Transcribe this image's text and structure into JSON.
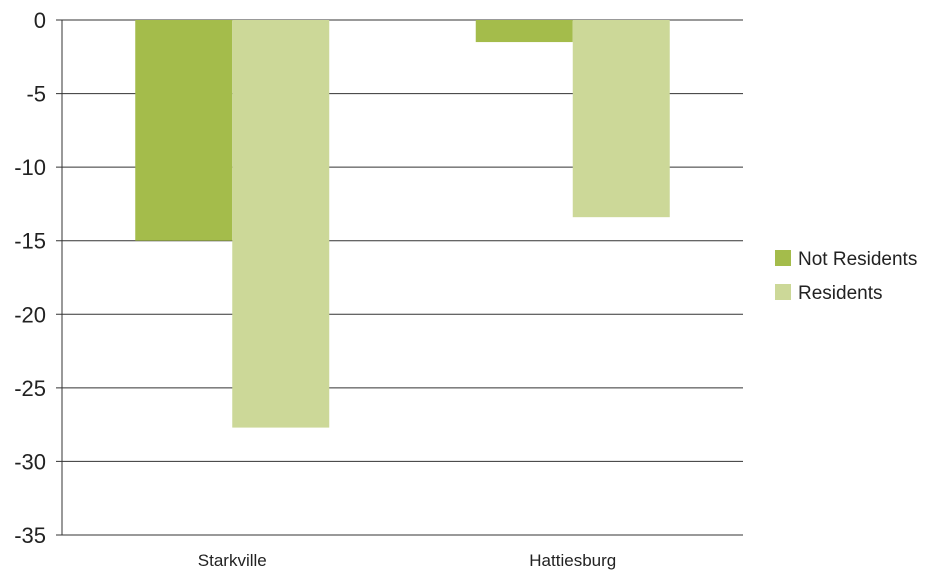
{
  "chart_data": {
    "type": "bar",
    "title": "",
    "xlabel": "",
    "ylabel": "",
    "categories": [
      "Starkville",
      "Hattiesburg"
    ],
    "series": [
      {
        "name": "Not Residents",
        "values": [
          -15,
          -1.5
        ],
        "color": "#a4bc4b"
      },
      {
        "name": "Residents",
        "values": [
          -27.7,
          -13.4
        ],
        "color": "#ccd898"
      }
    ],
    "ylim": [
      -35,
      0
    ],
    "yticks": [
      "0",
      "-5",
      "-10",
      "-15",
      "-20",
      "-25",
      "-30",
      "-35"
    ],
    "grid": true,
    "legend_position": "right"
  }
}
